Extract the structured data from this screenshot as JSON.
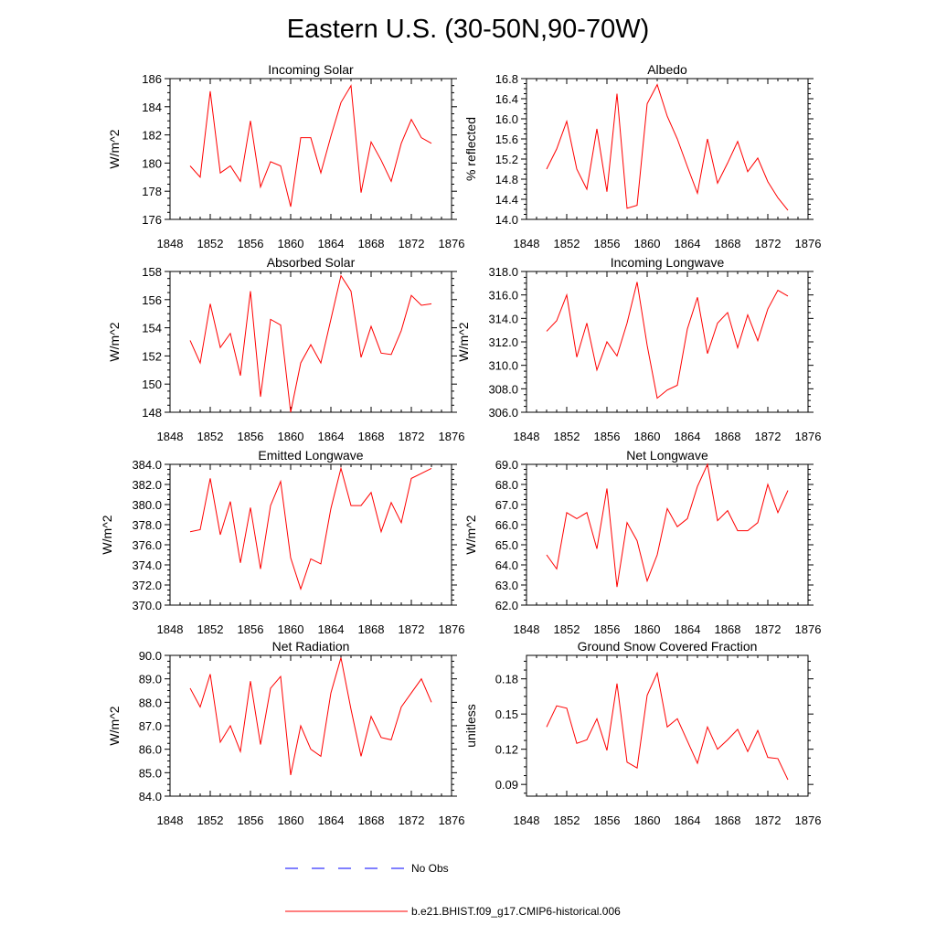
{
  "title": "Eastern U.S. (30-50N,90-70W)",
  "colors": {
    "model": "#ff0000",
    "obs": "#0000ff",
    "axis": "#000000"
  },
  "legend": [
    {
      "label": "No Obs",
      "color": "#0000ff",
      "dash": true
    },
    {
      "label": "b.e21.BHIST.f09_g17.CMIP6-historical.006",
      "color": "#ff0000",
      "dash": false
    }
  ],
  "chart_data": [
    {
      "type": "line",
      "title": "Incoming Solar",
      "ylabel": "W/m^2",
      "xlim": [
        1848,
        1876
      ],
      "xticks": [
        1848,
        1852,
        1856,
        1860,
        1864,
        1868,
        1872,
        1876
      ],
      "ylim": [
        176,
        186
      ],
      "yticks": [
        176,
        178,
        180,
        182,
        184,
        186
      ],
      "ydecimals": 0,
      "x": [
        1850,
        1851,
        1852,
        1853,
        1854,
        1855,
        1856,
        1857,
        1858,
        1859,
        1860,
        1861,
        1862,
        1863,
        1864,
        1865,
        1866,
        1867,
        1868,
        1869,
        1870,
        1871,
        1872,
        1873,
        1874
      ],
      "series": [
        {
          "name": "b.e21.BHIST.f09_g17.CMIP6-historical.006",
          "values": [
            179.8,
            179.0,
            185.1,
            179.3,
            179.8,
            178.7,
            183.0,
            178.3,
            180.1,
            179.8,
            176.9,
            181.8,
            181.8,
            179.3,
            181.9,
            184.3,
            185.5,
            177.9,
            181.5,
            180.2,
            178.7,
            181.4,
            183.1,
            181.8,
            181.4
          ]
        }
      ]
    },
    {
      "type": "line",
      "title": "Albedo",
      "ylabel": "% reflected",
      "xlim": [
        1848,
        1876
      ],
      "xticks": [
        1848,
        1852,
        1856,
        1860,
        1864,
        1868,
        1872,
        1876
      ],
      "ylim": [
        14.0,
        16.8
      ],
      "yticks": [
        14.0,
        14.4,
        14.8,
        15.2,
        15.6,
        16.0,
        16.4,
        16.8
      ],
      "ydecimals": 1,
      "x": [
        1850,
        1851,
        1852,
        1853,
        1854,
        1855,
        1856,
        1857,
        1858,
        1859,
        1860,
        1861,
        1862,
        1863,
        1864,
        1865,
        1866,
        1867,
        1868,
        1869,
        1870,
        1871,
        1872,
        1873,
        1874
      ],
      "series": [
        {
          "name": "b.e21.BHIST.f09_g17.CMIP6-historical.006",
          "values": [
            15.0,
            15.4,
            15.95,
            15.0,
            14.6,
            15.8,
            14.55,
            16.5,
            14.22,
            14.28,
            16.3,
            16.68,
            16.05,
            15.6,
            15.05,
            14.52,
            15.6,
            14.72,
            15.12,
            15.55,
            14.95,
            15.22,
            14.75,
            14.43,
            14.18
          ]
        }
      ]
    },
    {
      "type": "line",
      "title": "Absorbed Solar",
      "ylabel": "W/m^2",
      "xlim": [
        1848,
        1876
      ],
      "xticks": [
        1848,
        1852,
        1856,
        1860,
        1864,
        1868,
        1872,
        1876
      ],
      "ylim": [
        148,
        158
      ],
      "yticks": [
        148,
        150,
        152,
        154,
        156,
        158
      ],
      "ydecimals": 0,
      "x": [
        1850,
        1851,
        1852,
        1853,
        1854,
        1855,
        1856,
        1857,
        1858,
        1859,
        1860,
        1861,
        1862,
        1863,
        1864,
        1865,
        1866,
        1867,
        1868,
        1869,
        1870,
        1871,
        1872,
        1873,
        1874
      ],
      "series": [
        {
          "name": "b.e21.BHIST.f09_g17.CMIP6-historical.006",
          "values": [
            153.1,
            151.5,
            155.7,
            152.6,
            153.6,
            150.6,
            156.6,
            149.1,
            154.6,
            154.2,
            148.0,
            151.5,
            152.8,
            151.5,
            154.6,
            157.7,
            156.6,
            151.9,
            154.1,
            152.2,
            152.1,
            153.8,
            156.3,
            155.6,
            155.7
          ]
        }
      ]
    },
    {
      "type": "line",
      "title": "Incoming Longwave",
      "ylabel": "W/m^2",
      "xlim": [
        1848,
        1876
      ],
      "xticks": [
        1848,
        1852,
        1856,
        1860,
        1864,
        1868,
        1872,
        1876
      ],
      "ylim": [
        306.0,
        318.0
      ],
      "yticks": [
        306.0,
        308.0,
        310.0,
        312.0,
        314.0,
        316.0,
        318.0
      ],
      "ydecimals": 1,
      "x": [
        1850,
        1851,
        1852,
        1853,
        1854,
        1855,
        1856,
        1857,
        1858,
        1859,
        1860,
        1861,
        1862,
        1863,
        1864,
        1865,
        1866,
        1867,
        1868,
        1869,
        1870,
        1871,
        1872,
        1873,
        1874
      ],
      "series": [
        {
          "name": "b.e21.BHIST.f09_g17.CMIP6-historical.006",
          "values": [
            312.9,
            313.8,
            316.0,
            310.7,
            313.6,
            309.6,
            312.0,
            310.8,
            313.6,
            317.1,
            311.7,
            307.2,
            307.9,
            308.3,
            313.1,
            315.8,
            311.0,
            313.6,
            314.5,
            311.5,
            314.3,
            312.1,
            314.8,
            316.4,
            315.9
          ]
        }
      ]
    },
    {
      "type": "line",
      "title": "Emitted Longwave",
      "ylabel": "W/m^2",
      "xlim": [
        1848,
        1876
      ],
      "xticks": [
        1848,
        1852,
        1856,
        1860,
        1864,
        1868,
        1872,
        1876
      ],
      "ylim": [
        370.0,
        384.0
      ],
      "yticks": [
        370.0,
        372.0,
        374.0,
        376.0,
        378.0,
        380.0,
        382.0,
        384.0
      ],
      "ydecimals": 1,
      "x": [
        1850,
        1851,
        1852,
        1853,
        1854,
        1855,
        1856,
        1857,
        1858,
        1859,
        1860,
        1861,
        1862,
        1863,
        1864,
        1865,
        1866,
        1867,
        1868,
        1869,
        1870,
        1871,
        1872,
        1873,
        1874
      ],
      "series": [
        {
          "name": "b.e21.BHIST.f09_g17.CMIP6-historical.006",
          "values": [
            377.3,
            377.5,
            382.6,
            377.0,
            380.3,
            374.2,
            379.7,
            373.6,
            379.9,
            382.3,
            374.7,
            371.6,
            374.6,
            374.1,
            379.6,
            383.6,
            379.9,
            379.9,
            381.2,
            377.3,
            380.2,
            378.2,
            382.6,
            383.1,
            383.6
          ]
        }
      ]
    },
    {
      "type": "line",
      "title": "Net Longwave",
      "ylabel": "W/m^2",
      "xlim": [
        1848,
        1876
      ],
      "xticks": [
        1848,
        1852,
        1856,
        1860,
        1864,
        1868,
        1872,
        1876
      ],
      "ylim": [
        62.0,
        69.0
      ],
      "yticks": [
        62.0,
        63.0,
        64.0,
        65.0,
        66.0,
        67.0,
        68.0,
        69.0
      ],
      "ydecimals": 1,
      "x": [
        1850,
        1851,
        1852,
        1853,
        1854,
        1855,
        1856,
        1857,
        1858,
        1859,
        1860,
        1861,
        1862,
        1863,
        1864,
        1865,
        1866,
        1867,
        1868,
        1869,
        1870,
        1871,
        1872,
        1873,
        1874
      ],
      "series": [
        {
          "name": "b.e21.BHIST.f09_g17.CMIP6-historical.006",
          "values": [
            64.5,
            63.8,
            66.6,
            66.3,
            66.6,
            64.8,
            67.8,
            62.9,
            66.1,
            65.2,
            63.2,
            64.5,
            66.8,
            65.9,
            66.3,
            67.9,
            69.0,
            66.2,
            66.7,
            65.7,
            65.7,
            66.1,
            68.0,
            66.6,
            67.7
          ]
        }
      ]
    },
    {
      "type": "line",
      "title": "Net Radiation",
      "ylabel": "W/m^2",
      "xlim": [
        1848,
        1876
      ],
      "xticks": [
        1848,
        1852,
        1856,
        1860,
        1864,
        1868,
        1872,
        1876
      ],
      "ylim": [
        84.0,
        90.0
      ],
      "yticks": [
        84.0,
        85.0,
        86.0,
        87.0,
        88.0,
        89.0,
        90.0
      ],
      "ydecimals": 1,
      "x": [
        1850,
        1851,
        1852,
        1853,
        1854,
        1855,
        1856,
        1857,
        1858,
        1859,
        1860,
        1861,
        1862,
        1863,
        1864,
        1865,
        1866,
        1867,
        1868,
        1869,
        1870,
        1871,
        1872,
        1873,
        1874
      ],
      "series": [
        {
          "name": "b.e21.BHIST.f09_g17.CMIP6-historical.006",
          "values": [
            88.6,
            87.8,
            89.2,
            86.3,
            87.0,
            85.9,
            88.9,
            86.2,
            88.6,
            89.1,
            84.9,
            87.0,
            86.0,
            85.7,
            88.4,
            89.9,
            87.7,
            85.7,
            87.4,
            86.5,
            86.4,
            87.8,
            88.4,
            89.0,
            88.0
          ]
        }
      ]
    },
    {
      "type": "line",
      "title": "Ground Snow Covered Fraction",
      "ylabel": "unitless",
      "xlim": [
        1848,
        1876
      ],
      "xticks": [
        1848,
        1852,
        1856,
        1860,
        1864,
        1868,
        1872,
        1876
      ],
      "ylim": [
        0.08,
        0.2
      ],
      "yticks": [
        0.09,
        0.12,
        0.15,
        0.18
      ],
      "ydecimals": 2,
      "x": [
        1850,
        1851,
        1852,
        1853,
        1854,
        1855,
        1856,
        1857,
        1858,
        1859,
        1860,
        1861,
        1862,
        1863,
        1864,
        1865,
        1866,
        1867,
        1868,
        1869,
        1870,
        1871,
        1872,
        1873,
        1874
      ],
      "series": [
        {
          "name": "b.e21.BHIST.f09_g17.CMIP6-historical.006",
          "values": [
            0.139,
            0.157,
            0.155,
            0.125,
            0.128,
            0.146,
            0.119,
            0.176,
            0.109,
            0.104,
            0.166,
            0.185,
            0.139,
            0.146,
            0.127,
            0.108,
            0.139,
            0.12,
            0.128,
            0.137,
            0.118,
            0.136,
            0.113,
            0.112,
            0.094
          ]
        }
      ]
    }
  ]
}
